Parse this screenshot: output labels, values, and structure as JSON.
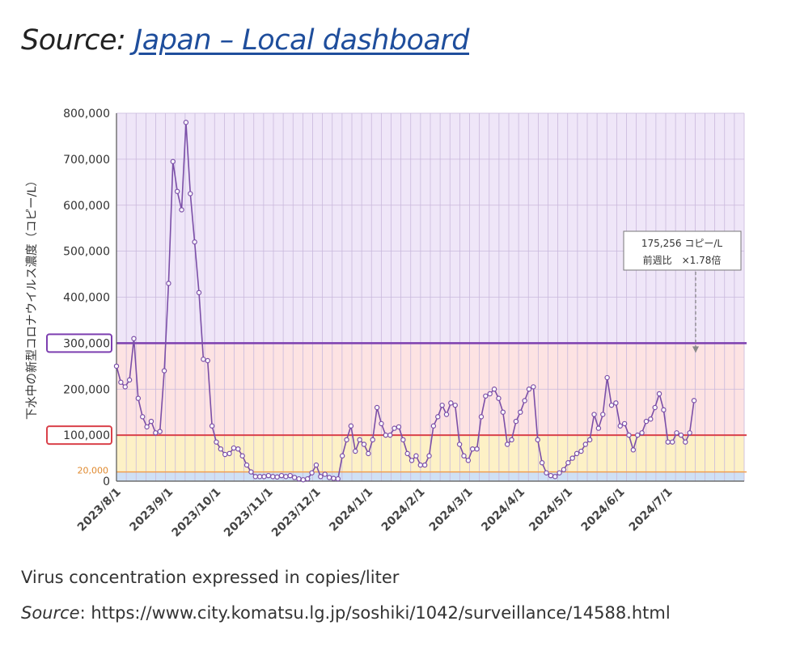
{
  "header": {
    "source_label": "Source:",
    "link_text": "Japan – Local dashboard"
  },
  "caption": "Virus concentration expressed in copies/liter",
  "source_footer": {
    "label": "Source",
    "sep": ": ",
    "url": "https://www.city.komatsu.lg.jp/soshiki/1042/surveillance/14588.html"
  },
  "colors": {
    "line": "#7b4fa8",
    "zone_purple": "#efe6f8",
    "zone_pink": "#fde3e3",
    "zone_yellow": "#fdf1c6",
    "zone_blue": "#cfe0f5",
    "threshold_300k": "#7d3fb0",
    "threshold_100k": "#d9414a",
    "threshold_20k": "#f0a050"
  },
  "chart_data": {
    "type": "line",
    "ylabel": "下水中の新型コロナウイルス濃度（コピー/L）",
    "ylim": [
      0,
      800000
    ],
    "yticks": [
      "800,000",
      "700,000",
      "600,000",
      "500,000",
      "400,000",
      "300,000",
      "200,000",
      "100,000",
      "20,000",
      "0"
    ],
    "xticks": [
      "2023/8/1",
      "2023/9/1",
      "2023/10/1",
      "2023/11/1",
      "2023/12/1",
      "2024/1/1",
      "2024/2/1",
      "2024/3/1",
      "2024/4/1",
      "2024/5/1",
      "2024/6/1",
      "2024/7/1"
    ],
    "thresholds": [
      {
        "value": 300000,
        "label": "300,000"
      },
      {
        "value": 100000,
        "label": "100,000"
      },
      {
        "value": 20000,
        "label": "20,000"
      }
    ],
    "annotation": {
      "line1": "175,256 コピー/L",
      "line2": "前週比　×1.78倍",
      "value": 175256
    },
    "series": [
      {
        "values": [
          250000,
          215000,
          205000,
          220000,
          310000,
          180000,
          140000,
          118000,
          130000,
          105000,
          108000,
          240000,
          430000,
          695000,
          630000,
          590000,
          780000,
          625000,
          520000,
          410000,
          265000,
          262000,
          120000,
          85000,
          70000,
          58000,
          60000,
          72000,
          70000,
          55000,
          35000,
          20000,
          10000,
          10000,
          10000,
          12000,
          10000,
          9000,
          12000,
          10000,
          12000,
          8000,
          5000,
          3000,
          5000,
          18000,
          35000,
          10000,
          15000,
          8000,
          6000,
          5000,
          55000,
          90000,
          120000,
          65000,
          90000,
          80000,
          60000,
          90000,
          160000,
          125000,
          100000,
          100000,
          115000,
          118000,
          90000,
          60000,
          45000,
          55000,
          35000,
          35000,
          55000,
          120000,
          140000,
          165000,
          145000,
          170000,
          165000,
          80000,
          55000,
          45000,
          70000,
          70000,
          140000,
          185000,
          190000,
          200000,
          180000,
          150000,
          80000,
          90000,
          130000,
          150000,
          175000,
          200000,
          205000,
          90000,
          40000,
          18000,
          12000,
          10000,
          18000,
          25000,
          40000,
          50000,
          60000,
          65000,
          80000,
          90000,
          145000,
          115000,
          145000,
          225000,
          165000,
          170000,
          120000,
          125000,
          100000,
          68000,
          100000,
          105000,
          130000,
          135000,
          160000,
          190000,
          155000,
          85000,
          85000,
          105000,
          100000,
          85000,
          105000,
          175256
        ]
      }
    ]
  }
}
